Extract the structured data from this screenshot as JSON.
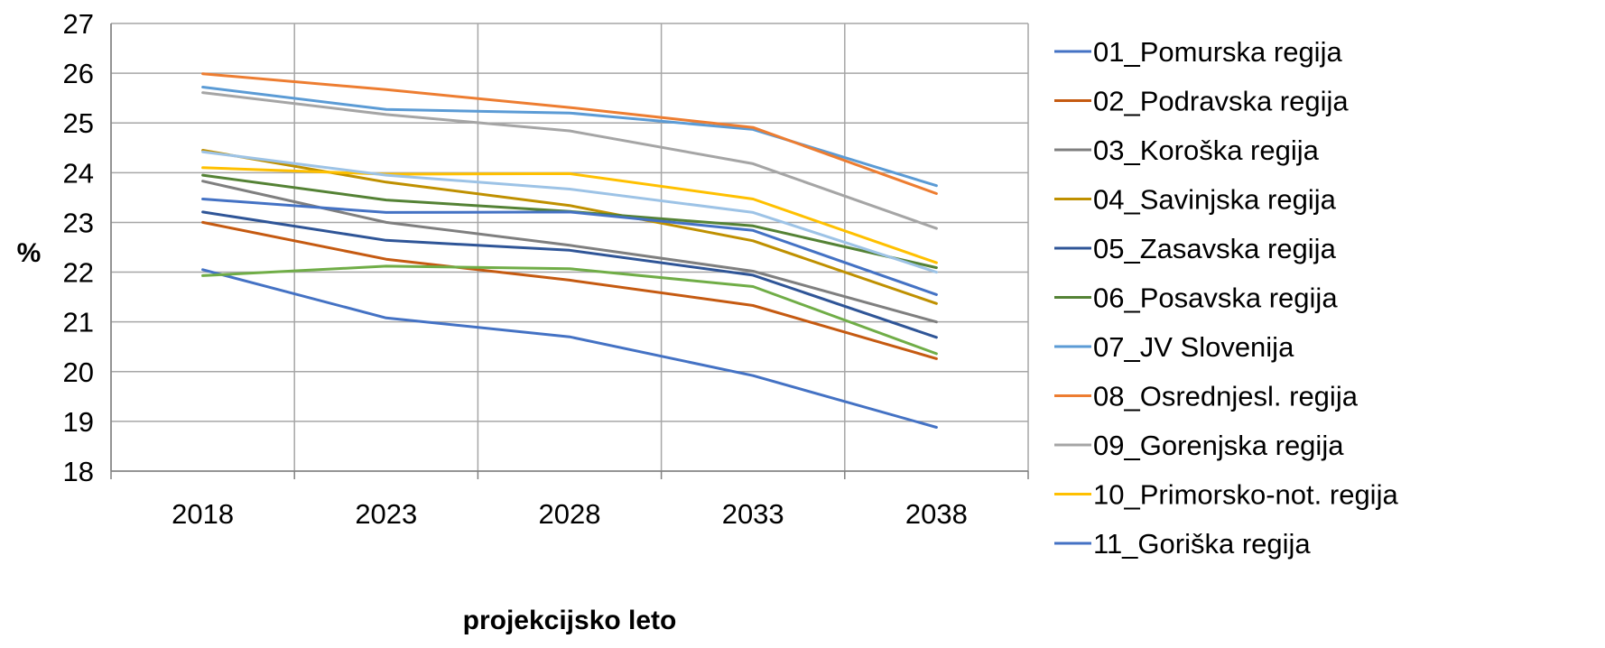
{
  "chart_data": {
    "type": "line",
    "xlabel": "projekcijsko leto",
    "ylabel": "%",
    "categories": [
      "2018",
      "2023",
      "2028",
      "2033",
      "2038"
    ],
    "ylim": [
      18,
      27
    ],
    "yticks": [
      18,
      19,
      20,
      21,
      22,
      23,
      24,
      25,
      26,
      27
    ],
    "grid": true,
    "legend_position": "right",
    "series": [
      {
        "name": "01_Pomurska regija",
        "color": "#4472c4",
        "values": [
          22.05,
          21.08,
          20.7,
          19.92,
          18.88
        ]
      },
      {
        "name": "02_Podravska regija",
        "color": "#c55a11",
        "values": [
          23.0,
          22.26,
          21.84,
          21.33,
          20.26
        ]
      },
      {
        "name": "03_Koroška regija",
        "color": "#7f7f7f",
        "values": [
          23.83,
          23.0,
          22.54,
          22.02,
          21.0
        ]
      },
      {
        "name": "04_Savinjska regija",
        "color": "#bf9000",
        "values": [
          24.45,
          23.81,
          23.34,
          22.63,
          21.37
        ]
      },
      {
        "name": "05_Zasavska regija",
        "color": "#2f5597",
        "values": [
          23.21,
          22.64,
          22.44,
          21.94,
          20.69
        ]
      },
      {
        "name": "06_Posavska regija",
        "color": "#548235",
        "values": [
          23.95,
          23.45,
          23.22,
          22.93,
          22.09
        ]
      },
      {
        "name": "07_JV Slovenija",
        "color": "#5b9bd5",
        "values": [
          25.72,
          25.27,
          25.2,
          24.87,
          23.74
        ]
      },
      {
        "name": "08_Osrednjesl. regija",
        "color": "#ed7d31",
        "values": [
          25.99,
          25.67,
          25.31,
          24.91,
          23.58
        ]
      },
      {
        "name": "09_Gorenjska regija",
        "color": "#a5a5a5",
        "values": [
          25.61,
          25.17,
          24.84,
          24.18,
          22.88
        ]
      },
      {
        "name": "10_Primorsko-not. regija",
        "color": "#ffc000",
        "values": [
          24.1,
          23.97,
          23.98,
          23.47,
          22.19
        ]
      },
      {
        "name": "11_Goriška regija",
        "color": "#4472c4",
        "values": [
          23.47,
          23.2,
          23.21,
          22.84,
          21.55
        ]
      },
      {
        "name": "",
        "color": "#70ad47",
        "values": [
          21.93,
          22.12,
          22.07,
          21.71,
          20.36
        ]
      },
      {
        "name": "",
        "color": "#9dc3e6",
        "values": [
          24.42,
          23.95,
          23.67,
          23.2,
          22.0
        ]
      }
    ]
  }
}
